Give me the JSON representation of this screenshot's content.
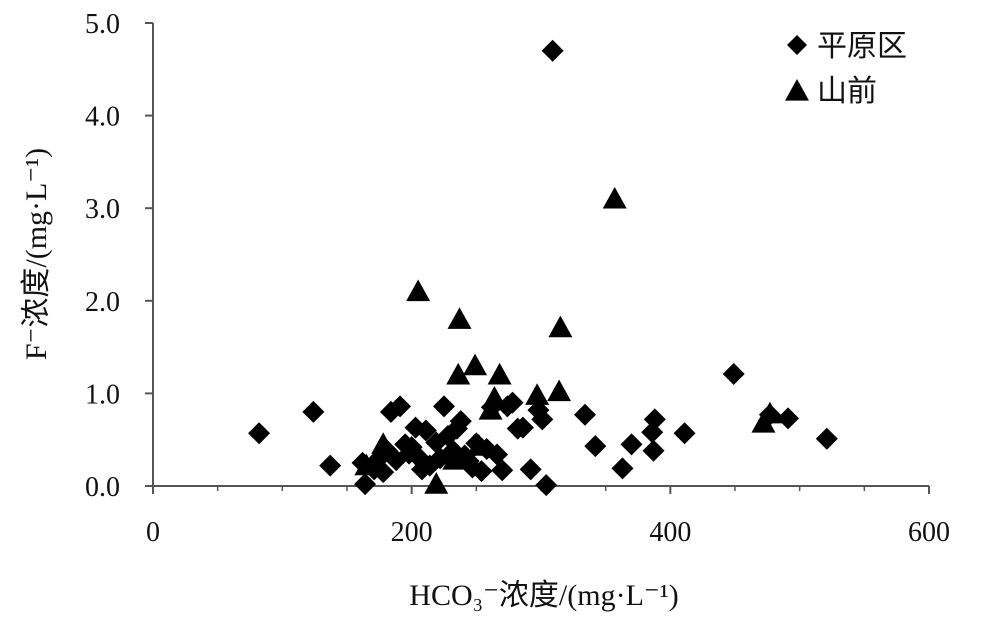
{
  "chart_data": {
    "type": "scatter",
    "xlabel": "HCO₃⁻浓度/(mg·L⁻¹)",
    "ylabel": "F⁻浓度/(mg·L⁻¹)",
    "xlim": [
      0,
      600
    ],
    "ylim": [
      0,
      5
    ],
    "x_ticks": [
      "0",
      "200",
      "400",
      "600"
    ],
    "y_ticks": [
      "0.0",
      "1.0",
      "2.0",
      "3.0",
      "4.0",
      "5.0"
    ],
    "grid": false,
    "legend_position": "top-right",
    "series": [
      {
        "name": "平原区",
        "marker": "diamond",
        "color": "#000000",
        "points": [
          [
            82,
            0.57
          ],
          [
            124,
            0.8
          ],
          [
            137,
            0.22
          ],
          [
            162,
            0.25
          ],
          [
            164,
            0.02
          ],
          [
            171,
            0.18
          ],
          [
            175,
            0.3
          ],
          [
            178,
            0.15
          ],
          [
            181,
            0.38
          ],
          [
            184,
            0.8
          ],
          [
            188,
            0.28
          ],
          [
            191,
            0.86
          ],
          [
            195,
            0.45
          ],
          [
            198,
            0.35
          ],
          [
            200,
            0.42
          ],
          [
            203,
            0.63
          ],
          [
            206,
            0.3
          ],
          [
            208,
            0.18
          ],
          [
            211,
            0.6
          ],
          [
            214,
            0.22
          ],
          [
            219,
            0.47
          ],
          [
            222,
            0.3
          ],
          [
            225,
            0.86
          ],
          [
            228,
            0.54
          ],
          [
            232,
            0.38
          ],
          [
            235,
            0.62
          ],
          [
            238,
            0.7
          ],
          [
            241,
            0.33
          ],
          [
            244,
            0.27
          ],
          [
            247,
            0.2
          ],
          [
            250,
            0.46
          ],
          [
            254,
            0.16
          ],
          [
            258,
            0.4
          ],
          [
            262,
            0.85
          ],
          [
            266,
            0.34
          ],
          [
            270,
            0.17
          ],
          [
            274,
            0.86
          ],
          [
            278,
            0.9
          ],
          [
            282,
            0.62
          ],
          [
            286,
            0.63
          ],
          [
            292,
            0.18
          ],
          [
            298,
            0.82
          ],
          [
            301,
            0.72
          ],
          [
            304,
            0.01
          ],
          [
            309,
            4.7
          ],
          [
            334,
            0.77
          ],
          [
            342,
            0.43
          ],
          [
            363,
            0.19
          ],
          [
            370,
            0.45
          ],
          [
            386,
            0.58
          ],
          [
            387,
            0.38
          ],
          [
            388,
            0.72
          ],
          [
            411,
            0.57
          ],
          [
            449,
            1.21
          ],
          [
            477,
            0.77
          ],
          [
            491,
            0.73
          ],
          [
            521,
            0.51
          ]
        ]
      },
      {
        "name": "山前",
        "marker": "triangle",
        "color": "#000000",
        "points": [
          [
            165,
            0.22
          ],
          [
            178,
            0.45
          ],
          [
            205,
            2.1
          ],
          [
            219,
            0.02
          ],
          [
            233,
            0.28
          ],
          [
            236,
            1.2
          ],
          [
            237,
            1.8
          ],
          [
            249,
            1.3
          ],
          [
            252,
            0.43
          ],
          [
            261,
            0.82
          ],
          [
            264,
            0.95
          ],
          [
            268,
            1.2
          ],
          [
            297,
            0.98
          ],
          [
            314,
            1.02
          ],
          [
            315,
            1.71
          ],
          [
            357,
            3.1
          ],
          [
            472,
            0.68
          ],
          [
            477,
            0.78
          ]
        ]
      }
    ]
  }
}
